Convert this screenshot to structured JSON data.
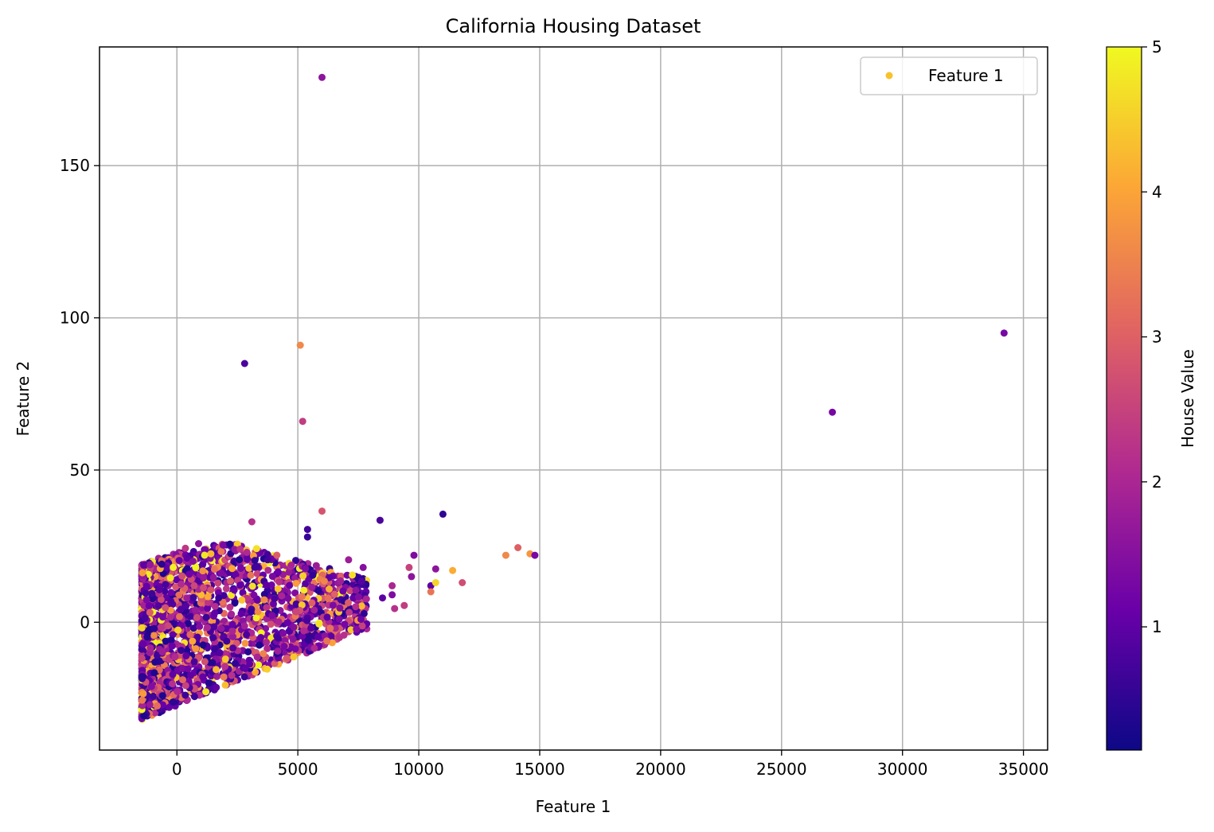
{
  "chart_data": {
    "type": "scatter",
    "title": "California Housing Dataset",
    "xlabel": "Feature 1",
    "ylabel": "Feature 2",
    "xlim": [
      -3200,
      36000
    ],
    "ylim": [
      -42,
      189
    ],
    "xticks": [
      0,
      5000,
      10000,
      15000,
      20000,
      25000,
      30000,
      35000
    ],
    "yticks": [
      0,
      50,
      100,
      150
    ],
    "grid": true,
    "legend": {
      "position": "top-right",
      "label": "Feature 1",
      "marker_color": "#f9c12a"
    },
    "colorbar": {
      "label": "House Value",
      "range": [
        0.15,
        5.0
      ],
      "ticks": [
        1,
        2,
        3,
        4,
        5
      ],
      "colormap": "plasma",
      "stops": [
        "#0d0887",
        "#6a00a8",
        "#b12a90",
        "#e16462",
        "#fca636",
        "#f0f921"
      ]
    },
    "point_cloud": {
      "description_points": 2600,
      "x_range": [
        -1500,
        8000
      ],
      "y_band": [
        -32,
        26
      ]
    },
    "outliers": [
      {
        "x": 6000,
        "y": 179,
        "value": 1.6
      },
      {
        "x": 2800,
        "y": 85,
        "value": 0.8
      },
      {
        "x": 5100,
        "y": 91,
        "value": 3.6
      },
      {
        "x": 5200,
        "y": 66,
        "value": 2.4
      },
      {
        "x": 27100,
        "y": 69,
        "value": 1.3
      },
      {
        "x": 34200,
        "y": 95,
        "value": 1.3
      },
      {
        "x": 6000,
        "y": 36.5,
        "value": 2.8
      },
      {
        "x": 8400,
        "y": 33.5,
        "value": 0.8
      },
      {
        "x": 11000,
        "y": 35.5,
        "value": 0.5
      },
      {
        "x": 5400,
        "y": 30.5,
        "value": 0.7
      },
      {
        "x": 5400,
        "y": 28,
        "value": 0.6
      },
      {
        "x": 3100,
        "y": 33,
        "value": 2.2
      },
      {
        "x": 13600,
        "y": 22,
        "value": 3.6
      },
      {
        "x": 14100,
        "y": 24.5,
        "value": 3.0
      },
      {
        "x": 14600,
        "y": 22.5,
        "value": 3.8
      },
      {
        "x": 14800,
        "y": 22,
        "value": 1.3
      },
      {
        "x": 11400,
        "y": 17,
        "value": 4.1
      },
      {
        "x": 11800,
        "y": 13,
        "value": 2.7
      },
      {
        "x": 10700,
        "y": 17.5,
        "value": 1.6
      },
      {
        "x": 10500,
        "y": 12,
        "value": 1.0
      },
      {
        "x": 10700,
        "y": 13,
        "value": 4.6
      },
      {
        "x": 10500,
        "y": 10,
        "value": 3.3
      },
      {
        "x": 9800,
        "y": 22,
        "value": 1.4
      },
      {
        "x": 9600,
        "y": 18,
        "value": 2.5
      },
      {
        "x": 9700,
        "y": 15,
        "value": 1.6
      },
      {
        "x": 8900,
        "y": 12,
        "value": 2.0
      },
      {
        "x": 8900,
        "y": 9,
        "value": 1.4
      },
      {
        "x": 8500,
        "y": 8,
        "value": 1.0
      },
      {
        "x": 9400,
        "y": 5.5,
        "value": 2.4
      },
      {
        "x": 9000,
        "y": 4.5,
        "value": 2.2
      },
      {
        "x": 7700,
        "y": 18,
        "value": 1.5
      },
      {
        "x": 7100,
        "y": 20.5,
        "value": 1.8
      },
      {
        "x": 7400,
        "y": 10.5,
        "value": 1.6
      }
    ]
  }
}
